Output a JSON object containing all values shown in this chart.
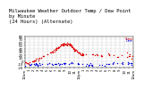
{
  "title": "Milwaukee Weather Outdoor Temp / Dew Point\nby Minute\n(24 Hours) (Alternate)",
  "title_fontsize": 4.0,
  "background_color": "#ffffff",
  "temp_color": "#dd0000",
  "dew_color": "#0000dd",
  "legend_color": "#000000",
  "ylim": [
    -20,
    80
  ],
  "xlim": [
    0,
    1440
  ],
  "yticks": [
    -20,
    -10,
    0,
    10,
    20,
    30,
    40,
    50,
    60,
    70,
    80
  ],
  "xtick_interval": 60,
  "grid_color": "#888888",
  "marker_size": 1.0,
  "tick_fontsize": 2.8,
  "note": "Data is sparse/scattered - only certain minute intervals have readings"
}
